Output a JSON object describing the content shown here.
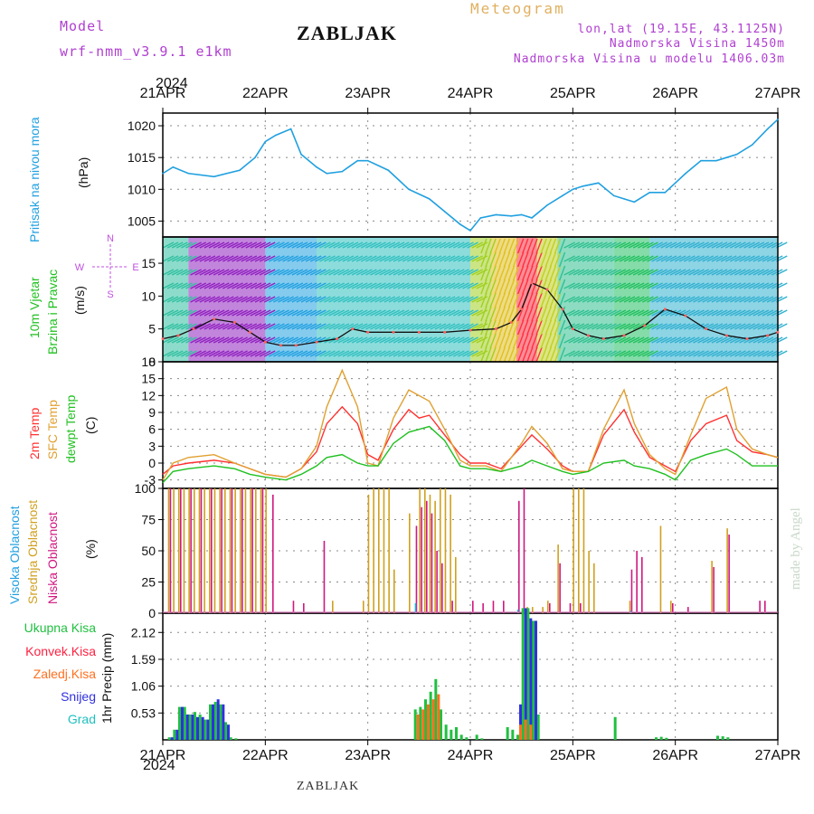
{
  "header": {
    "model_label": "Model",
    "model_name": "wrf-nmm_v3.9.1  e1km",
    "title": "ZABLJAK",
    "meteogram_label": "Meteogram",
    "coords": "lon,lat (19.15E, 43.1125N)",
    "altitude": "Nadmorska Visina 1450m",
    "model_altitude": "Nadmorska Visina u modelu 1406.03m",
    "year_top": "2024",
    "year_bottom": "2024"
  },
  "footer": {
    "station": "ZABLJAK",
    "credit": "made by Angel"
  },
  "colors": {
    "pressure": "#20a0e0",
    "temp2m": "#ff3030",
    "sfc": "#e0a030",
    "dewpt": "#20c020",
    "high_cloud": "#20b0e0",
    "mid_cloud": "#d0a020",
    "low_cloud": "#d01880",
    "total_precip": "#20c040",
    "conv_precip": "#ff2040",
    "frozen_precip": "#ff7020",
    "snow": "#3030e0",
    "grad": "#20c0c0",
    "wind_label": "#20c020",
    "wind_dir": "#c050e0"
  },
  "chart_data": [
    {
      "type": "line",
      "panel": "pressure",
      "ylabel": [
        "Pritisak na nivou mora",
        "(hPa)"
      ],
      "xticks": [
        "21APR",
        "22APR",
        "23APR",
        "24APR",
        "25APR",
        "26APR",
        "27APR"
      ],
      "x_range_days": [
        0,
        6
      ],
      "ylim": [
        1002.5,
        1022
      ],
      "yticks": [
        1005,
        1010,
        1015,
        1020
      ],
      "grid": true,
      "series": [
        {
          "x": [
            0,
            0.1,
            0.25,
            0.5,
            0.75,
            0.9,
            1.0,
            1.1,
            1.25,
            1.35,
            1.5,
            1.6,
            1.75,
            1.9,
            2.0,
            2.2,
            2.4,
            2.6,
            2.75,
            2.9,
            3.0,
            3.1,
            3.25,
            3.4,
            3.5,
            3.6,
            3.75,
            3.9,
            4.0,
            4.1,
            4.25,
            4.4,
            4.5,
            4.6,
            4.75,
            4.9,
            5.0,
            5.1,
            5.25,
            5.4,
            5.5,
            5.6,
            5.75,
            5.9,
            6.0
          ],
          "values": [
            1012.5,
            1013.5,
            1012.5,
            1012.0,
            1013.0,
            1015.0,
            1017.5,
            1018.5,
            1019.5,
            1015.5,
            1013.5,
            1012.5,
            1012.8,
            1014.5,
            1014.5,
            1013.0,
            1010.0,
            1008.5,
            1006.5,
            1004.5,
            1003.5,
            1005.5,
            1006.0,
            1005.8,
            1006.0,
            1005.5,
            1007.5,
            1009.0,
            1010.0,
            1010.5,
            1011.0,
            1009.0,
            1008.5,
            1008.0,
            1009.5,
            1009.5,
            1011.0,
            1012.5,
            1014.5,
            1014.5,
            1015.0,
            1015.5,
            1017.0,
            1019.5,
            1021.0
          ]
        }
      ]
    },
    {
      "type": "line",
      "panel": "wind",
      "ylabel": [
        "10m Vjetar",
        "Brzina i Pravac",
        "(m/s)"
      ],
      "compass": [
        "N",
        "E",
        "S",
        "W"
      ],
      "ylim": [
        0,
        19
      ],
      "yticks": [
        0,
        5,
        10,
        15
      ],
      "series": [
        {
          "x": [
            0,
            0.15,
            0.3,
            0.5,
            0.7,
            0.85,
            1.0,
            1.15,
            1.3,
            1.5,
            1.7,
            1.85,
            2.0,
            2.25,
            2.5,
            2.75,
            3.0,
            3.25,
            3.4,
            3.5,
            3.6,
            3.75,
            3.9,
            4.0,
            4.15,
            4.3,
            4.5,
            4.7,
            4.9,
            5.1,
            5.3,
            5.5,
            5.7,
            5.9,
            6.0
          ],
          "values": [
            3.5,
            4.0,
            5.0,
            6.5,
            6.0,
            4.5,
            3.0,
            2.5,
            2.5,
            3.0,
            3.5,
            5.0,
            4.5,
            4.5,
            4.5,
            4.5,
            4.8,
            5.0,
            6.0,
            8.0,
            12.0,
            11.0,
            8.0,
            5.0,
            4.0,
            3.5,
            4.0,
            5.5,
            8.0,
            7.0,
            5.0,
            4.0,
            3.5,
            4.0,
            4.5
          ]
        }
      ]
    },
    {
      "type": "line",
      "panel": "temperature",
      "ylabel": [
        "2m Temp",
        "SFC Temp",
        "dewpt Temp",
        "(C)"
      ],
      "ylim": [
        -4.5,
        18
      ],
      "yticks": [
        -3,
        0,
        3,
        6,
        9,
        12,
        15,
        18
      ],
      "series": [
        {
          "name": "2m Temp",
          "x": [
            0,
            0.1,
            0.25,
            0.5,
            0.7,
            0.85,
            1.0,
            1.2,
            1.35,
            1.5,
            1.6,
            1.75,
            1.9,
            2.0,
            2.1,
            2.25,
            2.4,
            2.5,
            2.6,
            2.75,
            2.9,
            3.0,
            3.15,
            3.3,
            3.5,
            3.6,
            3.75,
            3.9,
            4.0,
            4.15,
            4.3,
            4.5,
            4.6,
            4.75,
            4.9,
            5.0,
            5.15,
            5.3,
            5.5,
            5.6,
            5.75,
            5.9,
            6.0
          ],
          "values": [
            -2.0,
            -0.5,
            0.0,
            0.5,
            0.0,
            -1.0,
            -2.0,
            -2.5,
            -1.0,
            2.0,
            7.0,
            10.0,
            7.0,
            1.5,
            0.5,
            6.0,
            9.5,
            8.0,
            8.5,
            5.0,
            1.5,
            0.0,
            0.0,
            -1.0,
            3.0,
            5.0,
            2.5,
            -0.5,
            -1.5,
            -1.5,
            5.0,
            9.5,
            5.5,
            1.0,
            -0.5,
            -1.5,
            4.0,
            7.0,
            8.5,
            4.0,
            2.0,
            1.5,
            1.0
          ]
        },
        {
          "name": "SFC Temp",
          "x": [
            0,
            0.1,
            0.25,
            0.5,
            0.7,
            0.85,
            1.0,
            1.2,
            1.35,
            1.5,
            1.6,
            1.75,
            1.9,
            2.0,
            2.1,
            2.25,
            2.4,
            2.5,
            2.6,
            2.75,
            2.9,
            3.0,
            3.15,
            3.3,
            3.5,
            3.6,
            3.75,
            3.9,
            4.0,
            4.15,
            4.3,
            4.5,
            4.6,
            4.75,
            4.9,
            5.0,
            5.15,
            5.3,
            5.5,
            5.6,
            5.75,
            5.9,
            6.0
          ],
          "values": [
            -3.0,
            0.0,
            1.0,
            1.5,
            0.0,
            -1.0,
            -2.0,
            -2.5,
            -1.0,
            3.0,
            10.0,
            16.5,
            10.0,
            0.0,
            -0.5,
            8.0,
            13.0,
            12.0,
            11.0,
            6.0,
            0.5,
            -0.5,
            -0.5,
            -1.5,
            3.5,
            6.5,
            3.5,
            -1.0,
            -1.5,
            -1.5,
            6.0,
            13.0,
            7.0,
            1.5,
            -1.0,
            -2.0,
            5.0,
            11.5,
            13.5,
            6.0,
            2.5,
            1.5,
            1.0
          ]
        },
        {
          "name": "dewpt Temp",
          "x": [
            0,
            0.1,
            0.25,
            0.5,
            0.7,
            0.85,
            1.0,
            1.2,
            1.35,
            1.5,
            1.6,
            1.75,
            1.9,
            2.0,
            2.1,
            2.25,
            2.4,
            2.5,
            2.6,
            2.75,
            2.9,
            3.0,
            3.15,
            3.3,
            3.5,
            3.6,
            3.75,
            3.9,
            4.0,
            4.15,
            4.3,
            4.5,
            4.6,
            4.75,
            4.9,
            5.0,
            5.15,
            5.3,
            5.5,
            5.6,
            5.75,
            5.9,
            6.0
          ],
          "values": [
            -3.5,
            -1.5,
            -1.0,
            -0.5,
            -1.0,
            -2.0,
            -2.5,
            -3.0,
            -2.0,
            -0.5,
            1.0,
            1.5,
            0.0,
            -0.5,
            -0.5,
            3.5,
            5.5,
            6.0,
            6.5,
            4.0,
            -0.5,
            -1.0,
            -1.0,
            -1.5,
            -0.5,
            0.5,
            -0.5,
            -1.5,
            -2.0,
            -1.5,
            0.0,
            0.5,
            -0.5,
            -1.0,
            -2.0,
            -3.0,
            0.5,
            1.5,
            2.5,
            1.5,
            -0.5,
            -0.5,
            -0.5
          ]
        }
      ]
    },
    {
      "type": "bar",
      "panel": "clouds",
      "ylabel": [
        "Visoka Oblacnost",
        "Srednja Oblacnost",
        "Niska Oblacnost",
        "(%)"
      ],
      "ylim": [
        0,
        100
      ],
      "yticks": [
        0,
        25,
        50,
        75,
        100
      ],
      "series": [
        {
          "name": "Srednja Oblacnost",
          "x": [
            0.05,
            0.1,
            0.15,
            0.2,
            0.25,
            0.3,
            0.35,
            0.4,
            0.45,
            0.5,
            0.55,
            0.6,
            0.65,
            0.7,
            0.75,
            0.8,
            0.85,
            0.9,
            0.95,
            1.0,
            1.65,
            1.95,
            2.0,
            2.05,
            2.1,
            2.15,
            2.2,
            2.25,
            2.4,
            2.5,
            2.55,
            2.6,
            2.65,
            2.7,
            2.75,
            2.8,
            2.85,
            3.55,
            3.6,
            3.7,
            3.75,
            3.85,
            4.0,
            4.05,
            4.1,
            4.15,
            4.2,
            4.55,
            4.85,
            4.95,
            5.35,
            5.5
          ],
          "values": [
            100,
            100,
            100,
            100,
            100,
            100,
            100,
            100,
            100,
            100,
            100,
            100,
            100,
            100,
            100,
            100,
            100,
            100,
            100,
            100,
            10,
            10,
            95,
            100,
            100,
            100,
            100,
            35,
            80,
            100,
            100,
            95,
            90,
            100,
            100,
            95,
            45,
            5,
            5,
            5,
            10,
            55,
            100,
            100,
            100,
            50,
            40,
            10,
            70,
            10,
            42,
            68
          ]
        },
        {
          "name": "Niska Oblacnost",
          "x": [
            0.05,
            0.15,
            0.25,
            0.35,
            0.45,
            0.55,
            0.65,
            0.75,
            0.85,
            0.95,
            1.05,
            1.25,
            1.35,
            1.55,
            2.45,
            2.5,
            2.55,
            2.6,
            2.65,
            2.7,
            2.8,
            3.0,
            3.1,
            3.2,
            3.3,
            3.45,
            3.5,
            3.75,
            3.85,
            3.95,
            4.05,
            4.55,
            4.6,
            4.65,
            4.95,
            5.1,
            5.35,
            5.5,
            5.8,
            5.85
          ],
          "values": [
            100,
            100,
            100,
            100,
            100,
            100,
            100,
            100,
            100,
            100,
            95,
            10,
            8,
            58,
            70,
            85,
            90,
            80,
            50,
            40,
            10,
            10,
            8,
            10,
            10,
            90,
            100,
            8,
            40,
            8,
            8,
            35,
            50,
            45,
            8,
            5,
            37,
            63,
            10,
            10
          ]
        },
        {
          "name": "Visoka Oblacnost",
          "x": [
            2.45,
            3.45,
            3.55,
            4.55
          ],
          "values": [
            8,
            3,
            2,
            2
          ]
        }
      ]
    },
    {
      "type": "bar",
      "panel": "precipitation",
      "ylabel": [
        "1hr Precip (mm)"
      ],
      "legend": [
        "Ukupna Kisa",
        "Konvek.Kisa",
        "Zaledj.Kisa",
        "Snijeg",
        "Grad"
      ],
      "ylim": [
        0,
        2.5
      ],
      "yticks": [
        0.53,
        1.06,
        1.59,
        2.12
      ],
      "series": [
        {
          "name": "Ukupna Kisa",
          "x": [
            0.05,
            0.1,
            0.15,
            0.2,
            0.25,
            0.3,
            0.35,
            0.4,
            0.45,
            0.5,
            0.55,
            0.6,
            0.65,
            0.7,
            2.45,
            2.5,
            2.55,
            2.6,
            2.65,
            2.7,
            2.75,
            2.8,
            2.85,
            2.9,
            2.95,
            3.05,
            3.1,
            3.35,
            3.4,
            3.45,
            3.5,
            3.55,
            3.6,
            3.65,
            4.4,
            4.8,
            4.85,
            4.9,
            5.4,
            5.45,
            5.5
          ],
          "values": [
            0.05,
            0.2,
            0.65,
            0.65,
            0.5,
            0.55,
            0.5,
            0.4,
            0.7,
            0.75,
            0.7,
            0.35,
            0.05,
            0.03,
            0.6,
            0.65,
            0.8,
            0.95,
            1.2,
            0.6,
            0.3,
            0.2,
            0.25,
            0.1,
            0.05,
            0.1,
            0.03,
            0.25,
            0.2,
            0.1,
            2.6,
            2.6,
            2.35,
            0.5,
            0.45,
            0.05,
            0.06,
            0.04,
            0.08,
            0.07,
            0.05
          ]
        },
        {
          "name": "Snijeg",
          "x": [
            0.05,
            0.1,
            0.15,
            0.2,
            0.25,
            0.3,
            0.35,
            0.4,
            0.45,
            0.5,
            0.55,
            0.6,
            3.45,
            3.5,
            3.55,
            3.6
          ],
          "values": [
            0.05,
            0.2,
            0.65,
            0.5,
            0.5,
            0.45,
            0.45,
            0.4,
            0.7,
            0.8,
            0.7,
            0.3,
            0.7,
            2.6,
            2.4,
            2.35
          ]
        },
        {
          "name": "Zaledj.Kisa",
          "x": [
            2.45,
            2.5,
            2.55,
            2.6,
            2.65,
            3.45,
            3.5,
            3.55
          ],
          "values": [
            0.5,
            0.6,
            0.7,
            0.8,
            0.9,
            0.3,
            0.4,
            0.3
          ]
        }
      ]
    }
  ],
  "precip_legend": [
    {
      "label": "Ukupna Kisa",
      "color": "#20c040"
    },
    {
      "label": "Konvek.Kisa",
      "color": "#ff2040"
    },
    {
      "label": "Zaledj.Kisa",
      "color": "#ff7020"
    },
    {
      "label": "Snijeg",
      "color": "#3030e0"
    },
    {
      "label": "Grad",
      "color": "#20c0c0"
    }
  ]
}
